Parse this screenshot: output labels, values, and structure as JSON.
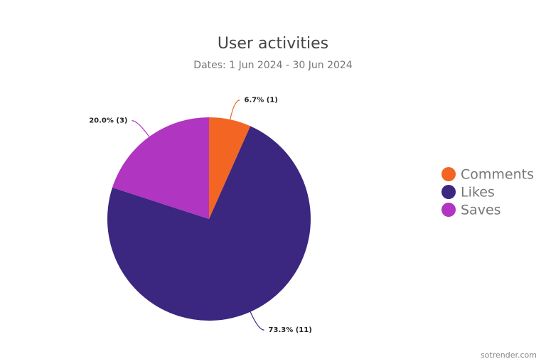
{
  "chart_data": {
    "type": "pie",
    "title": "User activities",
    "subtitle": "Dates: 1 Jun 2024 - 30 Jun 2024",
    "categories": [
      "Comments",
      "Likes",
      "Saves"
    ],
    "values": [
      1,
      11,
      3
    ],
    "value_labels": [
      "6.7% (1)",
      "73.3% (11)",
      "20.0% (3)"
    ],
    "colors": [
      "#f26522",
      "#3b2680",
      "#b035c0"
    ],
    "legend": "right",
    "source": "sotrender.com"
  }
}
